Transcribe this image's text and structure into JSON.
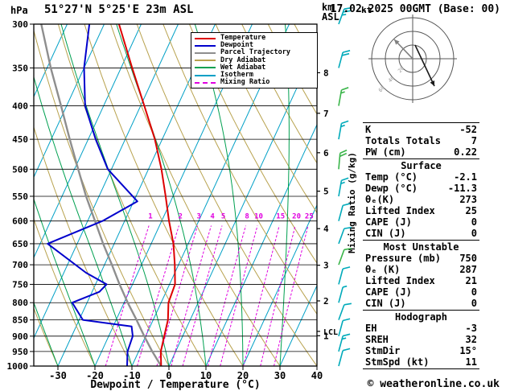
{
  "header": {
    "pressure_unit": "hPa",
    "title": "51°27'N 5°25'E 23m ASL",
    "altitude_unit": "km ASL",
    "datetime": "17.02.2025 00GMT (Base: 00)"
  },
  "footer": {
    "credit": "© weatheronline.co.uk"
  },
  "axes": {
    "x_title": "Dewpoint / Temperature (°C)",
    "mixing_ratio_title": "Mixing Ratio (g/kg)",
    "pressure_ticks": [
      300,
      350,
      400,
      450,
      500,
      550,
      600,
      650,
      700,
      750,
      800,
      850,
      900,
      950,
      1000
    ],
    "temp_ticks": [
      -30,
      -20,
      -10,
      0,
      10,
      20,
      30,
      40
    ],
    "km_ticks": [
      1,
      2,
      3,
      4,
      5,
      6,
      7,
      8
    ],
    "lcl_label": "LCL",
    "kt_label": "kt"
  },
  "legend": [
    {
      "label": "Temperature",
      "color": "#dd0000",
      "dash": false
    },
    {
      "label": "Dewpoint",
      "color": "#0000cc",
      "dash": false
    },
    {
      "label": "Parcel Trajectory",
      "color": "#8e8e8e",
      "dash": false
    },
    {
      "label": "Dry Adiabat",
      "color": "#b8a24e",
      "dash": false
    },
    {
      "label": "Wet Adiabat",
      "color": "#00a050",
      "dash": false
    },
    {
      "label": "Isotherm",
      "color": "#00a0c6",
      "dash": false
    },
    {
      "label": "Mixing Ratio",
      "color": "#e000e0",
      "dash": true
    }
  ],
  "chart_data": {
    "type": "skewt-logp",
    "pressure_range_hPa": [
      300,
      1000
    ],
    "temp_axis_range_C": [
      -30,
      40
    ],
    "isotherms": {
      "start": -120,
      "end": 40,
      "step": 10
    },
    "dry_adiabats_theta_C": {
      "start": -40,
      "end": 110,
      "step": 10
    },
    "wet_adiabats_thetaw_C": [
      -30,
      -20,
      -10,
      0,
      10,
      20,
      30,
      40
    ],
    "mixing_ratio_g_kg": [
      1,
      2,
      3,
      4,
      5,
      8,
      10,
      15,
      20,
      25
    ],
    "lcl_pressure_hPa": 885,
    "temperature_profile": [
      [
        1000,
        -2.1
      ],
      [
        950,
        -4
      ],
      [
        900,
        -5
      ],
      [
        850,
        -6
      ],
      [
        800,
        -8
      ],
      [
        750,
        -8.5
      ],
      [
        700,
        -11
      ],
      [
        650,
        -14
      ],
      [
        600,
        -18
      ],
      [
        550,
        -22
      ],
      [
        500,
        -26.5
      ],
      [
        450,
        -32
      ],
      [
        400,
        -39
      ],
      [
        350,
        -47
      ],
      [
        300,
        -56
      ]
    ],
    "dewpoint_profile": [
      [
        1000,
        -11.3
      ],
      [
        950,
        -13
      ],
      [
        900,
        -13.5
      ],
      [
        870,
        -15
      ],
      [
        850,
        -29
      ],
      [
        800,
        -34
      ],
      [
        770,
        -28
      ],
      [
        750,
        -27
      ],
      [
        720,
        -34
      ],
      [
        650,
        -48
      ],
      [
        600,
        -36
      ],
      [
        560,
        -29
      ],
      [
        500,
        -41
      ],
      [
        450,
        -48
      ],
      [
        400,
        -55
      ],
      [
        350,
        -60
      ],
      [
        300,
        -64
      ]
    ],
    "parcel_profile": [
      [
        1000,
        -2.1
      ],
      [
        950,
        -6.3
      ],
      [
        900,
        -10.4
      ],
      [
        850,
        -14.5
      ],
      [
        800,
        -19
      ],
      [
        750,
        -23.5
      ],
      [
        700,
        -28
      ],
      [
        650,
        -33
      ],
      [
        600,
        -38
      ],
      [
        550,
        -43.5
      ],
      [
        500,
        -49
      ],
      [
        450,
        -55
      ],
      [
        400,
        -61.5
      ],
      [
        350,
        -69
      ],
      [
        300,
        -77
      ]
    ],
    "wind_barbs": [
      {
        "p": 300,
        "speed_kt": 25,
        "dir_deg": 20,
        "color": "#00aaba"
      },
      {
        "p": 350,
        "speed_kt": 20,
        "dir_deg": 15,
        "color": "#00aaba"
      },
      {
        "p": 400,
        "speed_kt": 15,
        "dir_deg": 10,
        "color": "#3ab54a"
      },
      {
        "p": 450,
        "speed_kt": 15,
        "dir_deg": 10,
        "color": "#00aaba"
      },
      {
        "p": 500,
        "speed_kt": 20,
        "dir_deg": 5,
        "color": "#3ab54a"
      },
      {
        "p": 550,
        "speed_kt": 15,
        "dir_deg": 10,
        "color": "#00aaba"
      },
      {
        "p": 600,
        "speed_kt": 10,
        "dir_deg": 15,
        "color": "#00aaba"
      },
      {
        "p": 650,
        "speed_kt": 10,
        "dir_deg": 20,
        "color": "#00aaba"
      },
      {
        "p": 700,
        "speed_kt": 10,
        "dir_deg": 20,
        "color": "#3ab54a"
      },
      {
        "p": 750,
        "speed_kt": 10,
        "dir_deg": 15,
        "color": "#00aaba"
      },
      {
        "p": 800,
        "speed_kt": 5,
        "dir_deg": 15,
        "color": "#00aaba"
      },
      {
        "p": 850,
        "speed_kt": 10,
        "dir_deg": 20,
        "color": "#00aaba"
      },
      {
        "p": 900,
        "speed_kt": 10,
        "dir_deg": 15,
        "color": "#00aaba"
      },
      {
        "p": 950,
        "speed_kt": 15,
        "dir_deg": 15,
        "color": "#00aaba"
      },
      {
        "p": 1000,
        "speed_kt": 10,
        "dir_deg": 15,
        "color": "#00aaba"
      }
    ]
  },
  "hodograph": {
    "unit_label": "kt",
    "rings_kt": [
      20,
      40,
      60
    ],
    "arrows": [
      {
        "dx1": 0,
        "dy1": 0,
        "dx2": -23,
        "dy2": -24,
        "color": "#808080"
      },
      {
        "dx1": 3,
        "dy1": -17,
        "dx2": 27,
        "dy2": 34,
        "color": "#1a1a1a"
      }
    ]
  },
  "table": {
    "sections": [
      {
        "title": "",
        "rows": [
          {
            "label": "K",
            "value": "-52"
          },
          {
            "label": "Totals Totals",
            "value": "7"
          },
          {
            "label": "PW (cm)",
            "value": "0.22"
          }
        ]
      },
      {
        "title": "Surface",
        "rows": [
          {
            "label": "Temp (°C)",
            "value": "-2.1"
          },
          {
            "label": "Dewp (°C)",
            "value": "-11.3"
          },
          {
            "label": "θₑ(K)",
            "value": "273"
          },
          {
            "label": "Lifted Index",
            "value": "25"
          },
          {
            "label": "CAPE (J)",
            "value": "0"
          },
          {
            "label": "CIN (J)",
            "value": "0"
          }
        ]
      },
      {
        "title": "Most Unstable",
        "rows": [
          {
            "label": "Pressure (mb)",
            "value": "750"
          },
          {
            "label": "θₑ (K)",
            "value": "287"
          },
          {
            "label": "Lifted Index",
            "value": "21"
          },
          {
            "label": "CAPE (J)",
            "value": "0"
          },
          {
            "label": "CIN (J)",
            "value": "0"
          }
        ]
      },
      {
        "title": "Hodograph",
        "rows": [
          {
            "label": "EH",
            "value": "-3"
          },
          {
            "label": "SREH",
            "value": "32"
          },
          {
            "label": "StmDir",
            "value": "15°"
          },
          {
            "label": "StmSpd (kt)",
            "value": "11"
          }
        ]
      }
    ]
  }
}
